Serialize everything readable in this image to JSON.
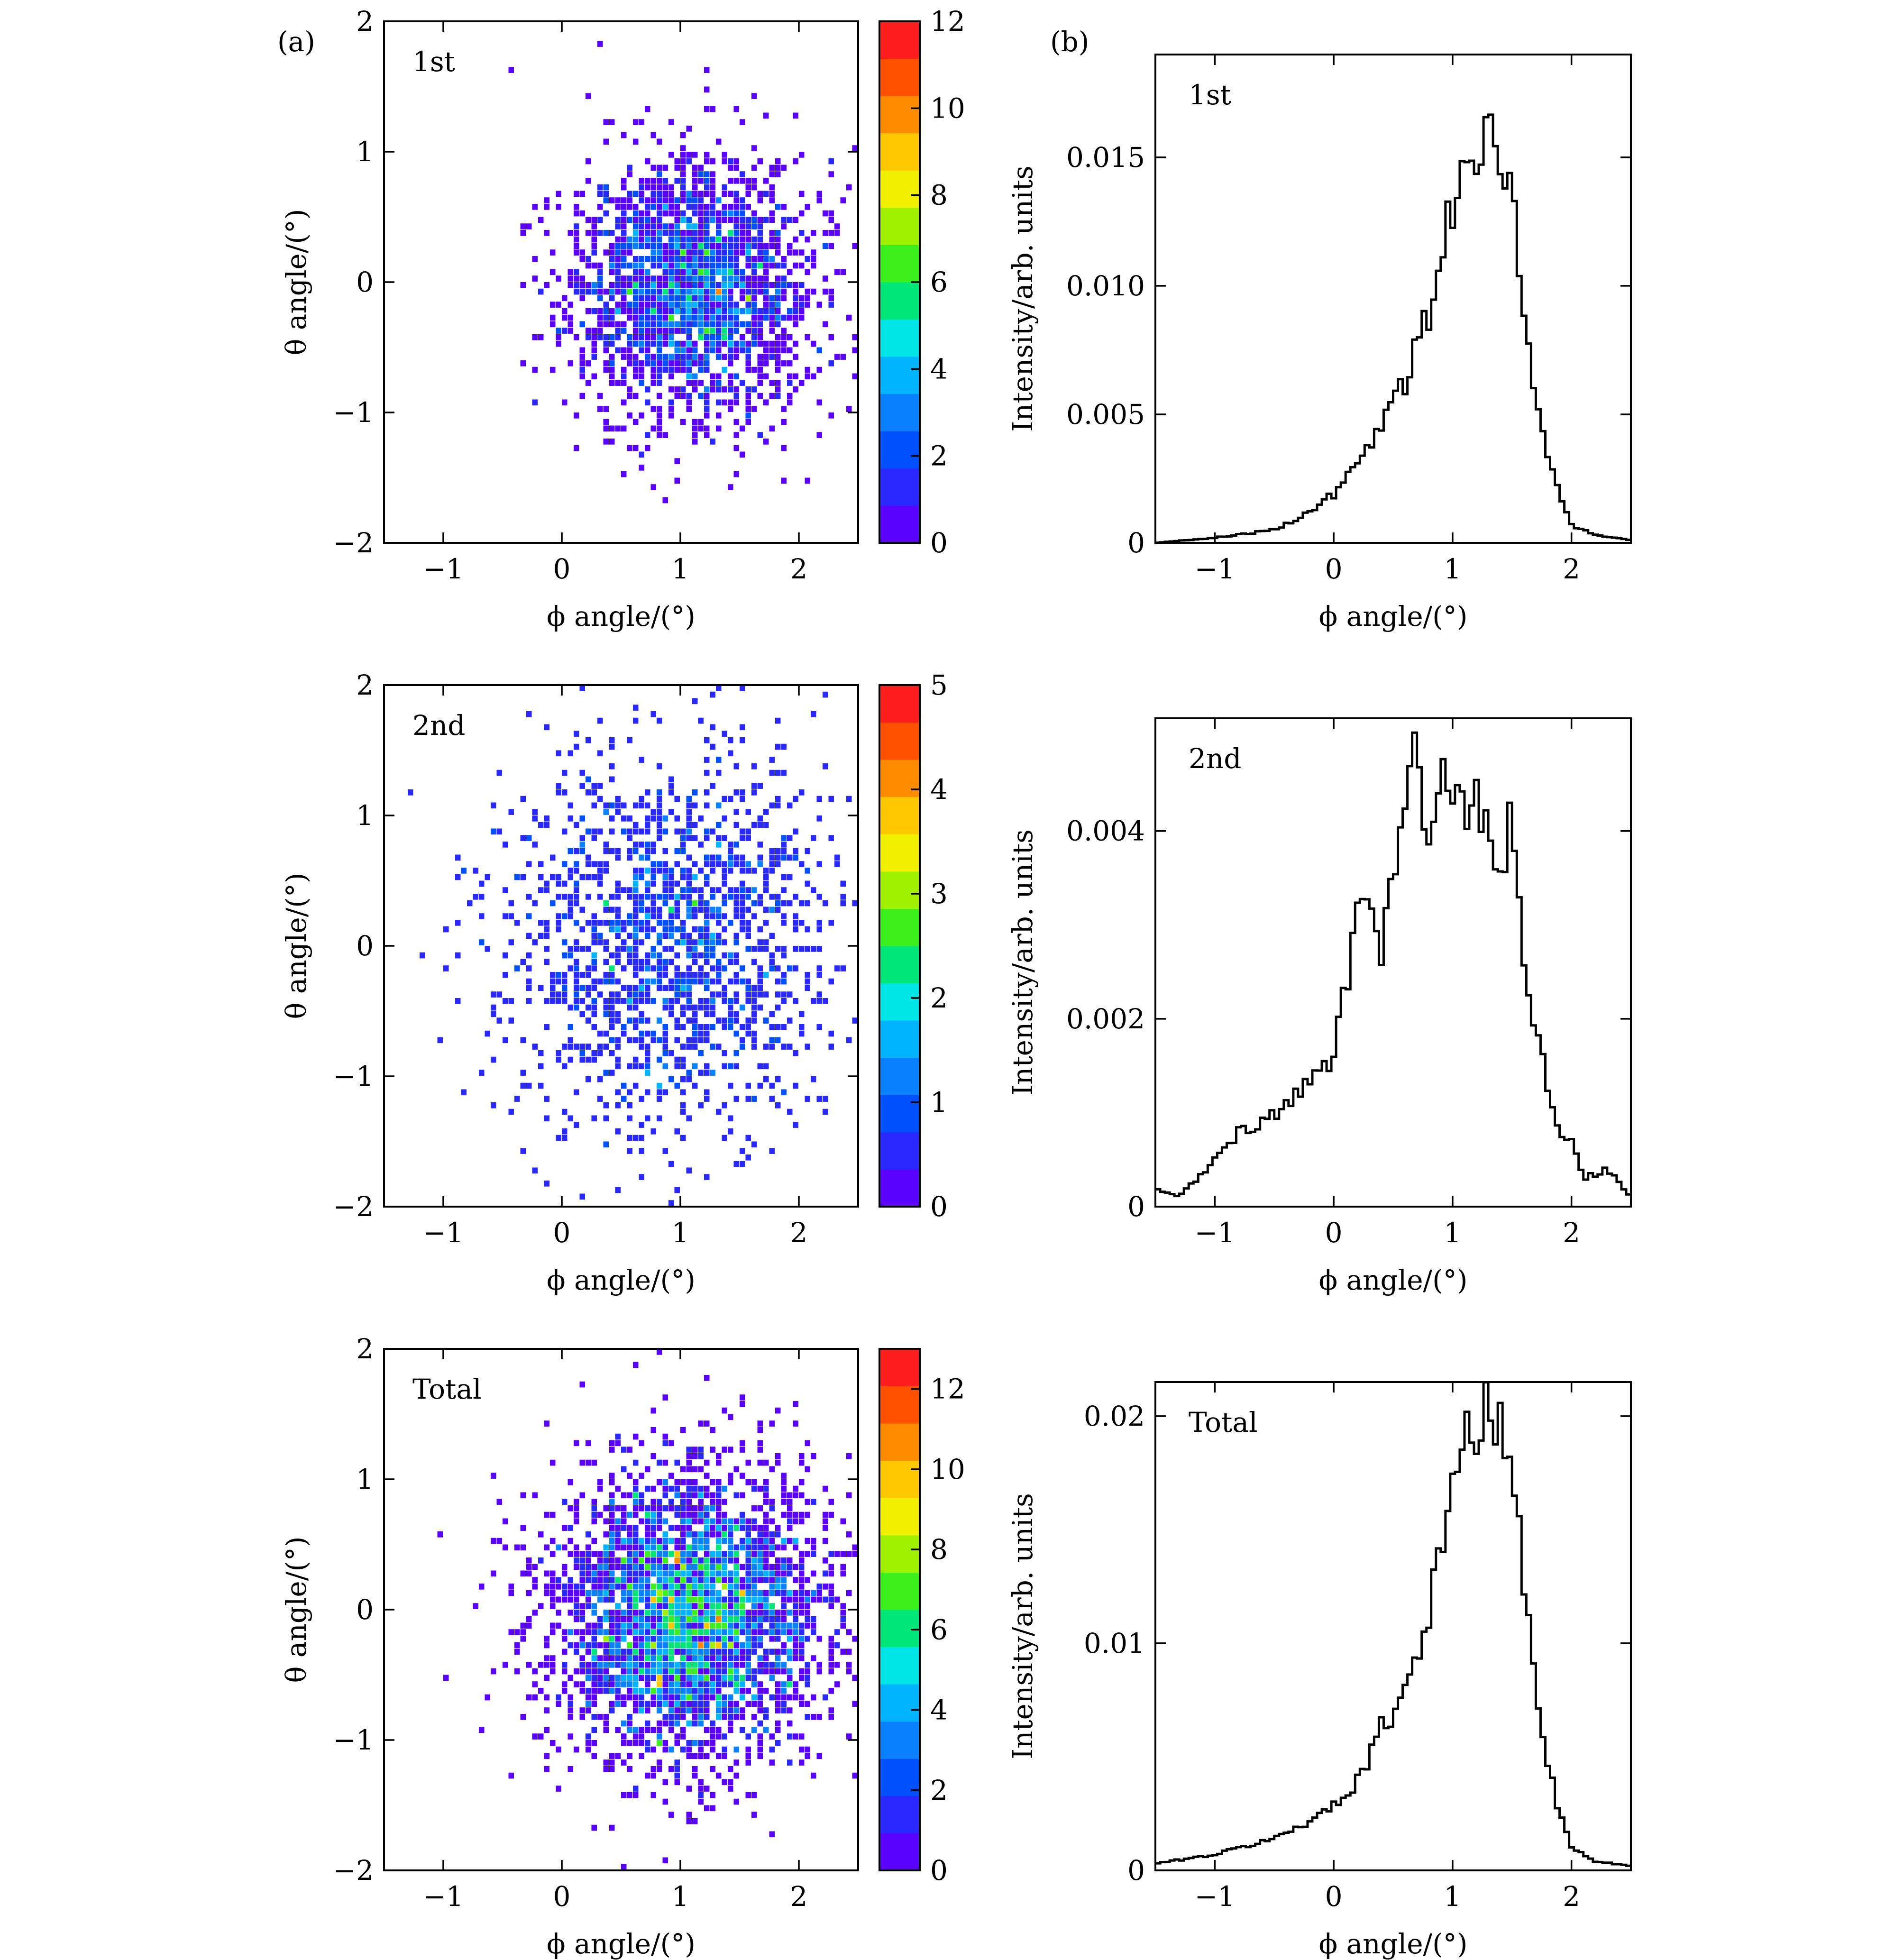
{
  "panel_labels": {
    "a": "(a)",
    "b": "(b)"
  },
  "colors": {
    "colormap": [
      "#5a00ff",
      "#2828ff",
      "#0050ff",
      "#0a82ff",
      "#00b4ff",
      "#00e6e6",
      "#00e678",
      "#3cf01e",
      "#a0f000",
      "#f0f000",
      "#ffc800",
      "#ff8c00",
      "#ff5000",
      "#ff1e1e"
    ],
    "hist_line": "#000000"
  },
  "chart_data": [
    {
      "id": "heatmap-1st",
      "type": "heatmap",
      "annotation": "1st",
      "xlabel": "ϕ angle/(°)",
      "ylabel": "θ angle/(°)",
      "xlim": [
        -1.5,
        2.5
      ],
      "ylim": [
        -2,
        2
      ],
      "xticks": [
        -1,
        0,
        1,
        2
      ],
      "yticks": [
        -2,
        -1,
        0,
        1,
        2
      ],
      "colorbar": {
        "min": 0,
        "max": 12,
        "ticks": [
          0,
          2,
          4,
          6,
          8,
          10,
          12
        ]
      },
      "distribution": {
        "center": [
          1.1,
          -0.05
        ],
        "spread": [
          0.5,
          0.5
        ],
        "points": 2200,
        "peak": 10,
        "seed": 11
      }
    },
    {
      "id": "hist-1st",
      "type": "line",
      "annotation": "1st",
      "xlabel": "ϕ angle/(°)",
      "ylabel": "Intensity/arb. units",
      "xlim": [
        -1.5,
        2.5
      ],
      "ylim": [
        0,
        0.019
      ],
      "xticks": [
        -1,
        0,
        1,
        2
      ],
      "yticks": [
        0,
        0.005,
        0.01,
        0.015
      ],
      "ytick_labels": [
        "0",
        "0.005",
        "0.010",
        "0.015"
      ],
      "x": [
        -1.5,
        -1.0,
        -0.5,
        -0.2,
        0.0,
        0.2,
        0.4,
        0.6,
        0.8,
        0.9,
        1.0,
        1.1,
        1.2,
        1.3,
        1.4,
        1.5,
        1.55,
        1.6,
        1.7,
        1.8,
        1.9,
        2.0,
        2.2,
        2.5
      ],
      "y": [
        0.0,
        0.0002,
        0.0005,
        0.0012,
        0.0019,
        0.003,
        0.0047,
        0.0063,
        0.009,
        0.0115,
        0.0132,
        0.015,
        0.0152,
        0.0167,
        0.015,
        0.0142,
        0.011,
        0.0088,
        0.0055,
        0.0035,
        0.0018,
        0.0007,
        0.0003,
        0.0001
      ]
    },
    {
      "id": "heatmap-2nd",
      "type": "heatmap",
      "annotation": "2nd",
      "xlabel": "ϕ angle/(°)",
      "ylabel": "θ angle/(°)",
      "xlim": [
        -1.5,
        2.5
      ],
      "ylim": [
        -2,
        2
      ],
      "xticks": [
        -1,
        0,
        1,
        2
      ],
      "yticks": [
        -2,
        -1,
        0,
        1,
        2
      ],
      "colorbar": {
        "min": 0,
        "max": 5,
        "ticks": [
          0,
          1,
          2,
          3,
          4,
          5
        ]
      },
      "distribution": {
        "center": [
          0.9,
          0.0
        ],
        "spread": [
          0.7,
          0.75
        ],
        "points": 1500,
        "peak": 2.7,
        "seed": 23
      }
    },
    {
      "id": "hist-2nd",
      "type": "line",
      "annotation": "2nd",
      "xlabel": "ϕ angle/(°)",
      "ylabel": "Intensity/arb. units",
      "xlim": [
        -1.5,
        2.5
      ],
      "ylim": [
        0,
        0.0052
      ],
      "xticks": [
        -1,
        0,
        1,
        2
      ],
      "yticks": [
        0,
        0.002,
        0.004
      ],
      "ytick_labels": [
        "0",
        "0.002",
        "0.004"
      ],
      "x": [
        -1.5,
        -1.3,
        -1.0,
        -0.8,
        -0.6,
        -0.4,
        -0.2,
        0.0,
        0.1,
        0.2,
        0.3,
        0.4,
        0.5,
        0.6,
        0.7,
        0.8,
        0.9,
        1.0,
        1.1,
        1.2,
        1.3,
        1.4,
        1.5,
        1.6,
        1.7,
        1.8,
        1.9,
        2.0,
        2.1,
        2.3,
        2.5
      ],
      "y": [
        0.0002,
        0.0001,
        0.0005,
        0.0008,
        0.0009,
        0.0011,
        0.0013,
        0.0016,
        0.0023,
        0.0034,
        0.003,
        0.0028,
        0.0038,
        0.004,
        0.0051,
        0.0038,
        0.0046,
        0.0047,
        0.0043,
        0.0044,
        0.004,
        0.0035,
        0.0041,
        0.0026,
        0.002,
        0.0012,
        0.0008,
        0.0007,
        0.0003,
        0.0004,
        0.0001
      ]
    },
    {
      "id": "heatmap-total",
      "type": "heatmap",
      "annotation": "Total",
      "xlabel": "ϕ angle/(°)",
      "ylabel": "θ angle/(°)",
      "xlim": [
        -1.5,
        2.5
      ],
      "ylim": [
        -2,
        2
      ],
      "xticks": [
        -1,
        0,
        1,
        2
      ],
      "yticks": [
        -2,
        -1,
        0,
        1,
        2
      ],
      "colorbar": {
        "min": 0,
        "max": 13,
        "ticks": [
          0,
          2,
          4,
          6,
          8,
          10,
          12
        ]
      },
      "distribution": {
        "center": [
          1.05,
          -0.05
        ],
        "spread": [
          0.55,
          0.55
        ],
        "points": 3400,
        "peak": 11,
        "seed": 37
      }
    },
    {
      "id": "hist-total",
      "type": "line",
      "annotation": "Total",
      "xlabel": "ϕ angle/(°)",
      "ylabel": "Intensity/arb. units",
      "xlim": [
        -1.5,
        2.5
      ],
      "ylim": [
        0,
        0.0215
      ],
      "xticks": [
        -1,
        0,
        1,
        2
      ],
      "yticks": [
        0,
        0.01,
        0.02
      ],
      "ytick_labels": [
        "0",
        "0.01",
        "0.02"
      ],
      "x": [
        -1.5,
        -1.0,
        -0.5,
        -0.2,
        0.0,
        0.2,
        0.4,
        0.6,
        0.8,
        0.9,
        1.0,
        1.1,
        1.2,
        1.3,
        1.4,
        1.5,
        1.55,
        1.6,
        1.7,
        1.8,
        1.9,
        2.0,
        2.2,
        2.5
      ],
      "y": [
        0.0003,
        0.0007,
        0.0014,
        0.0022,
        0.0028,
        0.004,
        0.0062,
        0.008,
        0.0115,
        0.0145,
        0.0162,
        0.019,
        0.0195,
        0.0205,
        0.019,
        0.0185,
        0.015,
        0.0125,
        0.008,
        0.005,
        0.0025,
        0.001,
        0.0004,
        0.0002
      ]
    }
  ]
}
